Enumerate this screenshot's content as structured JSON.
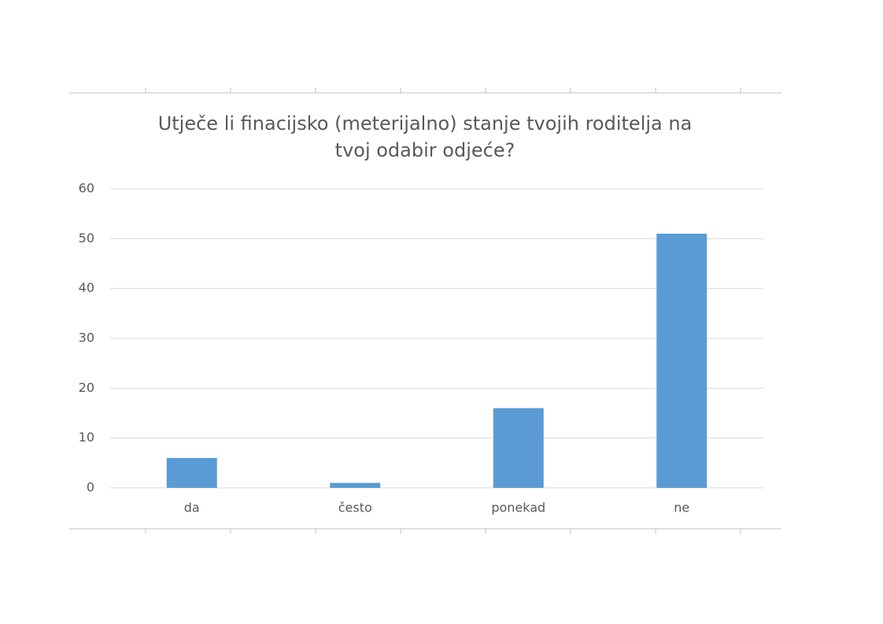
{
  "chart_data": {
    "type": "bar",
    "title": "Utječe li finacijsko (meterijalno) stanje tvojih roditelja na tvoj odabir odjeće?",
    "categories": [
      "da",
      "često",
      "ponekad",
      "ne"
    ],
    "values": [
      6,
      1,
      16,
      51
    ],
    "color": "#5b9bd5",
    "ylim": [
      0,
      60
    ],
    "yticks": [
      0,
      10,
      20,
      30,
      40,
      50,
      60
    ],
    "grid": true
  }
}
